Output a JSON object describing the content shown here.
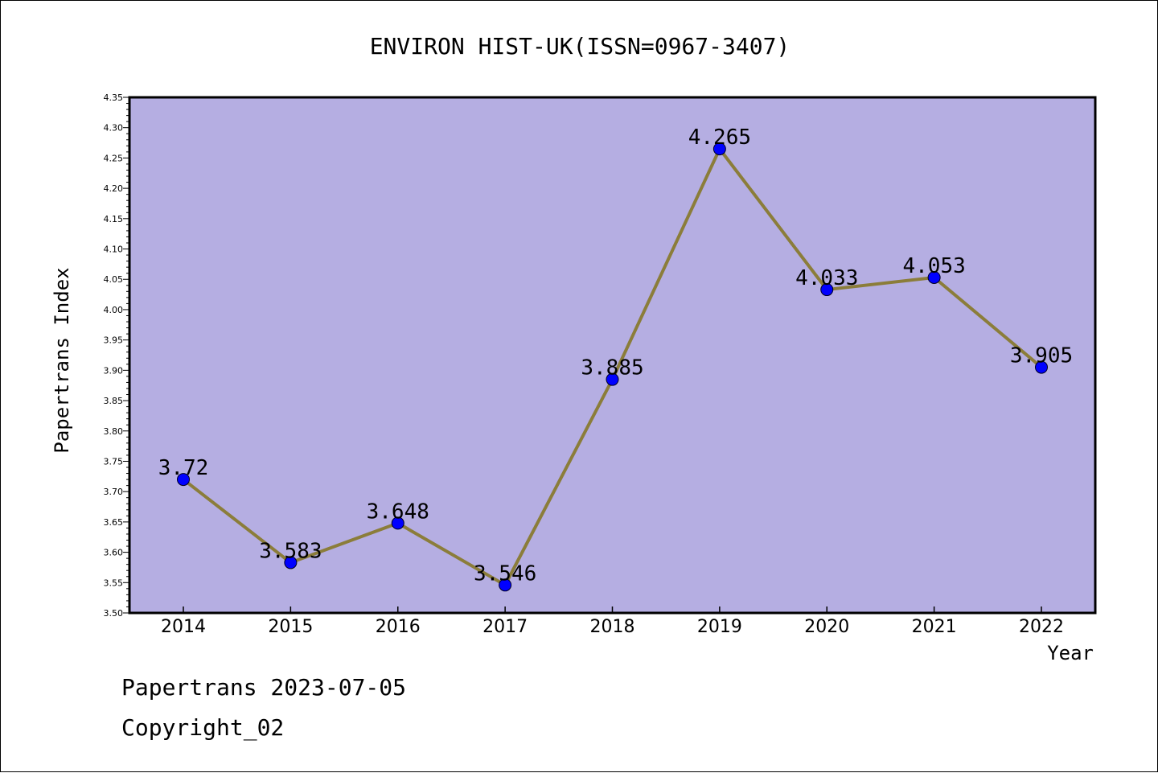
{
  "chart_data": {
    "type": "line",
    "title": "ENVIRON HIST-UK(ISSN=0967-3407)",
    "xlabel": "Year",
    "ylabel": "Papertrans Index",
    "categories": [
      "2014",
      "2015",
      "2016",
      "2017",
      "2018",
      "2019",
      "2020",
      "2021",
      "2022"
    ],
    "values": [
      3.72,
      3.583,
      3.648,
      3.546,
      3.885,
      4.265,
      4.033,
      4.053,
      3.905
    ],
    "data_labels": [
      "3.72",
      "3.583",
      "3.648",
      "3.546",
      "3.885",
      "4.265",
      "4.033",
      "4.053",
      "3.905"
    ],
    "ylim": [
      3.5,
      4.35
    ],
    "yticks": [
      "3.50",
      "3.55",
      "3.60",
      "3.65",
      "3.70",
      "3.75",
      "3.80",
      "3.85",
      "3.90",
      "3.95",
      "4.00",
      "4.05",
      "4.10",
      "4.15",
      "4.20",
      "4.25",
      "4.30",
      "4.35"
    ],
    "grid": false,
    "colors": {
      "plot_background": "#b5aee2",
      "line": "#8b7d3a",
      "marker": "#0000ff"
    }
  },
  "footer": {
    "line1": "Papertrans 2023-07-05",
    "line2": "Copyright_02"
  }
}
